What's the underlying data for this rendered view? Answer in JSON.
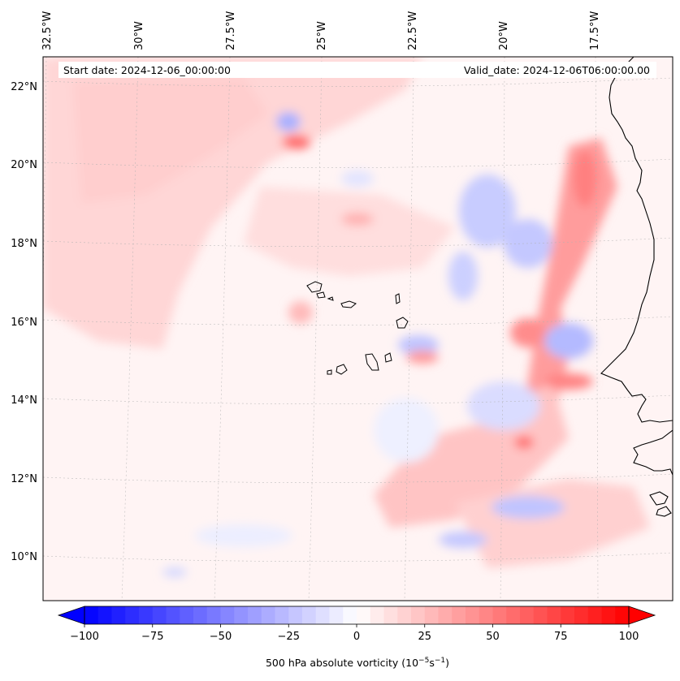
{
  "map": {
    "start_label": "Start date: 2024-12-06_00:00:00",
    "valid_label": "Valid_date: 2024-12-06T06:00:00.00",
    "lon_labels": [
      "32.5°W",
      "30°W",
      "27.5°W",
      "25°W",
      "22.5°W",
      "20°W",
      "17.5°W"
    ],
    "lat_labels": [
      "22°N",
      "20°N",
      "18°N",
      "16°N",
      "14°N",
      "12°N",
      "10°N"
    ],
    "field": "500 hPa absolute vorticity",
    "gridlines": true
  },
  "colorbar": {
    "title_text": "500 hPa absolute vorticity (10",
    "title_exp1": "−5",
    "title_mid": "s",
    "title_exp2": "−1",
    "title_end": ")",
    "ticks": [
      "−100",
      "−75",
      "−50",
      "−25",
      "0",
      "25",
      "50",
      "75",
      "100"
    ],
    "min": -100,
    "max": 100,
    "neg_color": "#0000ff",
    "pos_color": "#ff0000",
    "mid_color": "#ffffff"
  }
}
